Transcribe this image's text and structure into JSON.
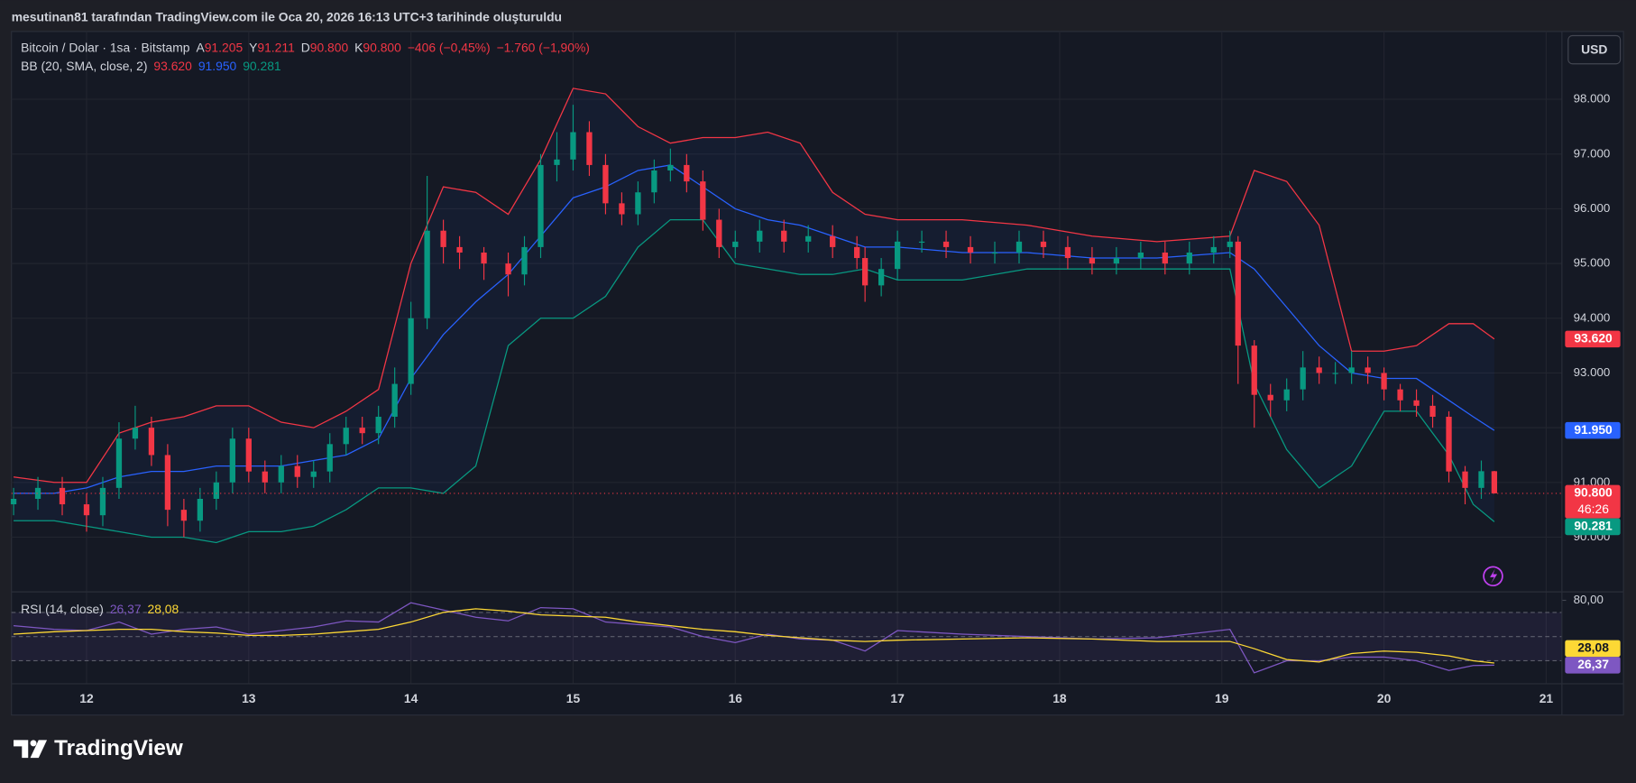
{
  "header": {
    "caption": "mesutinan81 tarafından TradingView.com ile Oca 20, 2026 16:13 UTC+3 tarihinde oluşturuldu"
  },
  "footer": {
    "brand": "TradingView"
  },
  "chart_data": {
    "type": "candlestick",
    "title": "Bitcoin / Dolar · 1sa · Bitstamp",
    "ohlc_legend": [
      {
        "key": "A",
        "text": "91.205"
      },
      {
        "key": "Y",
        "text": "91.211"
      },
      {
        "key": "D",
        "text": "90.800"
      },
      {
        "key": "K",
        "text": "90.800"
      }
    ],
    "change": [
      "−406 (−0,45%)",
      "−1.760 (−1,90%)"
    ],
    "up_color": "#089981",
    "down_color": "#f23645",
    "x": [
      11.55,
      11.7,
      11.85,
      12.0,
      12.1,
      12.2,
      12.3,
      12.4,
      12.5,
      12.6,
      12.7,
      12.8,
      12.9,
      13.0,
      13.1,
      13.2,
      13.3,
      13.4,
      13.5,
      13.6,
      13.7,
      13.8,
      13.9,
      14.0,
      14.1,
      14.2,
      14.3,
      14.45,
      14.6,
      14.7,
      14.8,
      14.9,
      15.0,
      15.1,
      15.2,
      15.3,
      15.4,
      15.5,
      15.6,
      15.7,
      15.8,
      15.9,
      16.0,
      16.15,
      16.3,
      16.45,
      16.6,
      16.75,
      16.8,
      16.9,
      17.0,
      17.15,
      17.3,
      17.45,
      17.6,
      17.75,
      17.9,
      18.05,
      18.2,
      18.35,
      18.5,
      18.65,
      18.8,
      18.95,
      19.05,
      19.1,
      19.2,
      19.3,
      19.4,
      19.5,
      19.6,
      19.7,
      19.8,
      19.9,
      20.0,
      20.1,
      20.2,
      20.3,
      20.4,
      20.5,
      20.6,
      20.68
    ],
    "open": [
      90600,
      90700,
      90900,
      90600,
      90400,
      90900,
      91800,
      92000,
      91500,
      90500,
      90300,
      90700,
      91000,
      91800,
      91200,
      91000,
      91300,
      91100,
      91200,
      91700,
      92000,
      91900,
      92200,
      92800,
      94000,
      95600,
      95300,
      95200,
      95000,
      94800,
      95300,
      96800,
      96900,
      97400,
      96800,
      96100,
      95900,
      96300,
      96700,
      96800,
      96500,
      95800,
      95300,
      95400,
      95600,
      95400,
      95500,
      95300,
      95100,
      94600,
      94900,
      95400,
      95400,
      95300,
      95200,
      95200,
      95400,
      95300,
      95100,
      95000,
      95100,
      95200,
      95000,
      95200,
      95300,
      95400,
      93500,
      92600,
      92500,
      92700,
      93100,
      93000,
      93000,
      93100,
      93000,
      92700,
      92500,
      92400,
      92200,
      91200,
      90900,
      91205
    ],
    "high": [
      90900,
      91100,
      91100,
      90800,
      91100,
      92100,
      92400,
      92200,
      91700,
      90700,
      90900,
      91200,
      92000,
      92000,
      91400,
      91500,
      91500,
      91400,
      91900,
      92200,
      92200,
      92400,
      93100,
      94300,
      96600,
      95800,
      95500,
      95300,
      95200,
      95500,
      97000,
      97400,
      97900,
      97600,
      97000,
      96300,
      96500,
      96900,
      97100,
      97000,
      96700,
      96000,
      95600,
      95800,
      95800,
      95700,
      95700,
      95500,
      95300,
      95100,
      95600,
      95600,
      95600,
      95500,
      95400,
      95600,
      95600,
      95500,
      95300,
      95300,
      95400,
      95400,
      95400,
      95500,
      95600,
      95500,
      93600,
      92800,
      92900,
      93400,
      93300,
      93200,
      93400,
      93300,
      93100,
      92800,
      92700,
      92600,
      92300,
      91300,
      91400,
      91211
    ],
    "low": [
      90400,
      90500,
      90400,
      90100,
      90200,
      90700,
      91600,
      91300,
      90200,
      90000,
      90100,
      90500,
      90800,
      91000,
      90800,
      90800,
      90900,
      90900,
      91000,
      91500,
      91700,
      91700,
      92000,
      92600,
      93800,
      95000,
      94900,
      94700,
      94400,
      94600,
      95100,
      96500,
      96700,
      96600,
      95900,
      95700,
      95700,
      96100,
      96500,
      96300,
      95600,
      95100,
      95100,
      95200,
      95200,
      95200,
      95100,
      94900,
      94300,
      94400,
      94700,
      95200,
      95100,
      95000,
      95000,
      95000,
      95100,
      94900,
      94800,
      94800,
      94900,
      94800,
      94800,
      95000,
      95100,
      92800,
      92000,
      92200,
      92300,
      92500,
      92800,
      92800,
      92800,
      92800,
      92500,
      92300,
      92200,
      92000,
      91000,
      90600,
      90700,
      90800
    ],
    "close": [
      90700,
      90900,
      90600,
      90400,
      90900,
      91800,
      92000,
      91500,
      90500,
      90300,
      90700,
      91000,
      91800,
      91200,
      91000,
      91300,
      91100,
      91200,
      91700,
      92000,
      91900,
      92200,
      92800,
      94000,
      95600,
      95300,
      95200,
      95000,
      94800,
      95300,
      96800,
      96900,
      97400,
      96800,
      96100,
      95900,
      96300,
      96700,
      96800,
      96500,
      95800,
      95300,
      95400,
      95600,
      95400,
      95500,
      95300,
      95100,
      94600,
      94900,
      95400,
      95400,
      95300,
      95200,
      95200,
      95400,
      95300,
      95100,
      95000,
      95100,
      95200,
      95000,
      95200,
      95300,
      95400,
      93500,
      92600,
      92500,
      92700,
      93100,
      93000,
      93000,
      93100,
      93000,
      92700,
      92500,
      92400,
      92200,
      91200,
      90900,
      91205,
      90800
    ],
    "xlim": [
      11.537,
      21.097
    ],
    "xticks": [
      12,
      13,
      14,
      15,
      16,
      17,
      18,
      19,
      20,
      21
    ],
    "ylim": [
      89000,
      99240
    ],
    "yticks": [
      {
        "value": 90000,
        "label": "90.000"
      },
      {
        "value": 91000,
        "label": "91.000"
      },
      {
        "value": 92000,
        "label": "92.000"
      },
      {
        "value": 93000,
        "label": "93.000"
      },
      {
        "value": 94000,
        "label": "94.000"
      },
      {
        "value": 95000,
        "label": "95.000"
      },
      {
        "value": 96000,
        "label": "96.000"
      },
      {
        "value": 97000,
        "label": "97.000"
      },
      {
        "value": 98000,
        "label": "98.000"
      }
    ],
    "grid": true,
    "currency": "USD",
    "indicator_label": "BB (20, SMA, close, 2)",
    "band_fill": "rgba(41,98,255,0.06)",
    "band_x": [
      11.55,
      11.8,
      12.0,
      12.2,
      12.4,
      12.6,
      12.8,
      13.0,
      13.2,
      13.4,
      13.6,
      13.8,
      14.0,
      14.2,
      14.4,
      14.6,
      14.8,
      15.0,
      15.2,
      15.4,
      15.6,
      15.8,
      16.0,
      16.2,
      16.4,
      16.6,
      16.8,
      17.0,
      17.4,
      17.8,
      18.2,
      18.6,
      19.05,
      19.2,
      19.4,
      19.6,
      19.8,
      20.0,
      20.2,
      20.4,
      20.55,
      20.68
    ],
    "bands": [
      {
        "color": "#f23645",
        "values": [
          91100,
          91000,
          91000,
          91900,
          92100,
          92200,
          92400,
          92400,
          92100,
          92000,
          92300,
          92700,
          95000,
          96400,
          96300,
          95900,
          96900,
          98200,
          98100,
          97500,
          97200,
          97300,
          97300,
          97400,
          97200,
          96300,
          95900,
          95800,
          95800,
          95700,
          95500,
          95400,
          95500,
          96700,
          96500,
          95700,
          93400,
          93400,
          93500,
          93900,
          93900,
          93620
        ]
      },
      {
        "color": "#2962ff",
        "values": [
          90800,
          90800,
          90900,
          91100,
          91200,
          91200,
          91300,
          91300,
          91300,
          91400,
          91500,
          91800,
          92900,
          93700,
          94300,
          94800,
          95500,
          96200,
          96400,
          96700,
          96800,
          96400,
          96000,
          95800,
          95700,
          95500,
          95300,
          95300,
          95200,
          95200,
          95100,
          95100,
          95200,
          94900,
          94200,
          93500,
          93000,
          92900,
          92900,
          92500,
          92200,
          91950
        ]
      },
      {
        "color": "#089981",
        "values": [
          90300,
          90300,
          90200,
          90100,
          90000,
          90000,
          89900,
          90100,
          90100,
          90200,
          90500,
          90900,
          90900,
          90800,
          91300,
          93500,
          94000,
          94000,
          94400,
          95300,
          95800,
          95800,
          95000,
          94900,
          94800,
          94800,
          94900,
          94700,
          94700,
          94900,
          94900,
          94900,
          94900,
          92800,
          91600,
          90900,
          91300,
          92300,
          92300,
          91500,
          90600,
          90281
        ]
      }
    ],
    "price_labels": [
      {
        "value": 93620,
        "label": "93.620",
        "color": "#f23645"
      },
      {
        "value": 91950,
        "label": "91.950",
        "color": "#2962ff"
      },
      {
        "value": 90800,
        "label": "90.800",
        "countdown": "46:26",
        "color": "#f23645"
      },
      {
        "value": 90281,
        "label": "90.281",
        "color": "#089981"
      }
    ],
    "rsi": {
      "type": "line",
      "label": "RSI (14, close)",
      "ylim": [
        11,
        87
      ],
      "yticks": [
        {
          "value": 80,
          "label": "80,00"
        }
      ],
      "levels": [
        70,
        50,
        30
      ],
      "band_color": "rgba(126,87,194,0.10)",
      "series": [
        {
          "color": "#7e57c2",
          "values": [
            59,
            56,
            55,
            62,
            52,
            56,
            58,
            52,
            55,
            58,
            63,
            62,
            78,
            72,
            66,
            63,
            74,
            73,
            62,
            60,
            58,
            50,
            45,
            52,
            48,
            47,
            38,
            55,
            52,
            50,
            48,
            49,
            56,
            20,
            30,
            30,
            33,
            33,
            30,
            22,
            26,
            26.37
          ]
        },
        {
          "color": "#fdd835",
          "values": [
            52,
            54,
            55,
            56,
            56,
            54,
            53,
            51,
            51,
            52,
            54,
            56,
            62,
            70,
            73,
            71,
            68,
            67,
            66,
            62,
            59,
            56,
            54,
            51,
            49,
            47,
            46,
            47,
            48,
            49,
            48,
            46,
            46,
            40,
            31,
            29,
            36,
            38,
            37,
            34,
            30,
            28.08
          ]
        }
      ],
      "value_labels": [
        {
          "value": 26.37,
          "label": "26,37"
        },
        {
          "value": 28.08,
          "label": "28,08"
        }
      ]
    }
  }
}
